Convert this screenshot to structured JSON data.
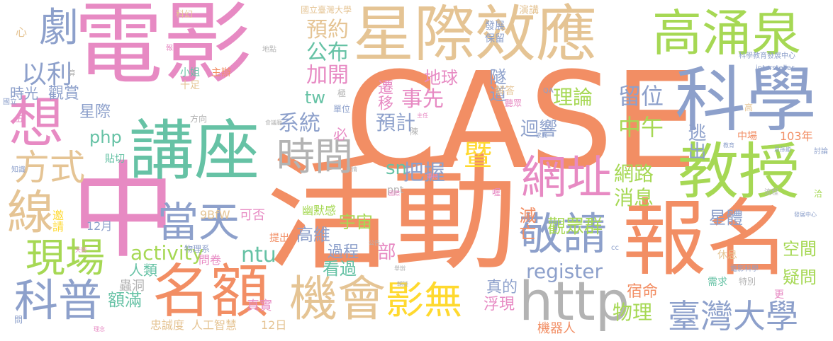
{
  "palette": {
    "orange": "#f28e64",
    "pink": "#e78ac3",
    "green": "#a6d854",
    "tan": "#e5c494",
    "gray": "#b3b3b3",
    "blue": "#8da0cb",
    "teal": "#66c2a5",
    "yellow": "#ffd92f"
  },
  "words": [
    {
      "text": "CASE",
      "color": "#f28e64"
    },
    {
      "text": "電影",
      "color": "#e78ac3"
    },
    {
      "text": "星際效應",
      "color": "#e5c494"
    },
    {
      "text": "活動",
      "color": "#f28e64"
    },
    {
      "text": "中",
      "color": "#e78ac3"
    },
    {
      "text": "報名",
      "color": "#f28e64"
    },
    {
      "text": "講座",
      "color": "#66c2a5"
    },
    {
      "text": "科學",
      "color": "#8da0cb"
    },
    {
      "text": "教授",
      "color": "#a6d854"
    },
    {
      "text": "高涌泉",
      "color": "#a6d854"
    },
    {
      "text": "http",
      "color": "#b3b3b3"
    },
    {
      "text": "名額",
      "color": "#f28e64"
    },
    {
      "text": "機會",
      "color": "#e5c494"
    },
    {
      "text": "網址",
      "color": "#e78ac3"
    },
    {
      "text": "敬請",
      "color": "#8da0cb"
    },
    {
      "text": "當天",
      "color": "#8da0cb"
    },
    {
      "text": "時間",
      "color": "#b3b3b3"
    },
    {
      "text": "想",
      "color": "#e78ac3"
    },
    {
      "text": "劇",
      "color": "#8da0cb"
    },
    {
      "text": "方式",
      "color": "#e5c494"
    },
    {
      "text": "線",
      "color": "#e5c494"
    },
    {
      "text": "現場",
      "color": "#a6d854"
    },
    {
      "text": "科普",
      "color": "#8da0cb"
    },
    {
      "text": "影無",
      "color": "#ffd92f"
    },
    {
      "text": "臺灣大學",
      "color": "#8da0cb"
    },
    {
      "text": "以利",
      "color": "#8da0cb"
    },
    {
      "text": "預約",
      "color": "#e5c494"
    },
    {
      "text": "公布",
      "color": "#66c2a5"
    },
    {
      "text": "加開",
      "color": "#e78ac3"
    },
    {
      "text": "事先",
      "color": "#e78ac3"
    },
    {
      "text": "預計",
      "color": "#8da0cb"
    },
    {
      "text": "系統",
      "color": "#8da0cb"
    },
    {
      "text": "把握",
      "color": "#8da0cb"
    },
    {
      "text": "理論",
      "color": "#a6d854"
    },
    {
      "text": "留位",
      "color": "#8da0cb"
    },
    {
      "text": "中午",
      "color": "#a6d854"
    },
    {
      "text": "迴響",
      "color": "#8da0cb"
    },
    {
      "text": "逃出",
      "color": "#8da0cb"
    },
    {
      "text": "遷移",
      "color": "#e78ac3"
    },
    {
      "text": "地球",
      "color": "#e78ac3"
    },
    {
      "text": "隧道",
      "color": "#8da0cb"
    },
    {
      "text": "網路",
      "color": "#a6d854"
    },
    {
      "text": "消息",
      "color": "#a6d854"
    },
    {
      "text": "觀眾群",
      "color": "#a6d854"
    },
    {
      "text": "滅亡",
      "color": "#f28e64"
    },
    {
      "text": "宇宙",
      "color": "#a6d854"
    },
    {
      "text": "過程",
      "color": "#8da0cb"
    },
    {
      "text": "高維",
      "color": "#8da0cb"
    },
    {
      "text": "星體",
      "color": "#8da0cb"
    },
    {
      "text": "空間",
      "color": "#a6d854"
    },
    {
      "text": "疑問",
      "color": "#a6d854"
    },
    {
      "text": "物理",
      "color": "#a6d854"
    },
    {
      "text": "宿命",
      "color": "#f28e64"
    },
    {
      "text": "register",
      "color": "#8da0cb"
    },
    {
      "text": "activity",
      "color": "#a6d854"
    },
    {
      "text": "ntu",
      "color": "#66c2a5"
    },
    {
      "text": "看過",
      "color": "#66c2a5"
    },
    {
      "text": "部",
      "color": "#e78ac3"
    },
    {
      "text": "tw",
      "color": "#66c2a5"
    },
    {
      "text": "php",
      "color": "#66c2a5"
    },
    {
      "text": "sn",
      "color": "#66c2a5"
    },
    {
      "text": "暨",
      "color": "#ffd92f"
    },
    {
      "text": "必",
      "color": "#e78ac3"
    },
    {
      "text": "時光",
      "color": "#8da0cb"
    },
    {
      "text": "觀賞",
      "color": "#8da0cb"
    },
    {
      "text": "星際",
      "color": "#8da0cb"
    },
    {
      "text": "額滿",
      "color": "#66c2a5"
    },
    {
      "text": "人類",
      "color": "#66c2a5"
    },
    {
      "text": "蟲洞",
      "color": "#b3b3b3"
    },
    {
      "text": "真實",
      "color": "#e78ac3"
    },
    {
      "text": "真的",
      "color": "#8da0cb"
    },
    {
      "text": "浮現",
      "color": "#e78ac3"
    },
    {
      "text": "機器人",
      "color": "#f28e64"
    },
    {
      "text": "忠誠度",
      "color": "#e5c494"
    },
    {
      "text": "人工智慧",
      "color": "#e5c494"
    },
    {
      "text": "12日",
      "color": "#e5c494"
    },
    {
      "text": "103年",
      "color": "#f28e64"
    },
    {
      "text": "幽默感",
      "color": "#a6d854"
    },
    {
      "text": "可否",
      "color": "#e78ac3"
    },
    {
      "text": "9BfW",
      "color": "#e5c494"
    },
    {
      "text": "12月",
      "color": "#8da0cb"
    },
    {
      "text": "邀請",
      "color": "#ffd92f"
    },
    {
      "text": "提出",
      "color": "#f28e64"
    },
    {
      "text": "問卷",
      "color": "#e78ac3"
    },
    {
      "text": "物理系",
      "color": "#8da0cb"
    },
    {
      "text": "ppt",
      "color": "#b3b3b3"
    },
    {
      "text": "小姐",
      "color": "#66c2a5"
    },
    {
      "text": "十足",
      "color": "#e5c494"
    },
    {
      "text": "主辦",
      "color": "#f28e64"
    },
    {
      "text": "貼切",
      "color": "#66c2a5"
    },
    {
      "text": "方向",
      "color": "#b3b3b3"
    },
    {
      "text": "單位",
      "color": "#8da0cb"
    },
    {
      "text": "解答",
      "color": "#e5c494"
    },
    {
      "text": "聽眾",
      "color": "#e78ac3"
    },
    {
      "text": "中場",
      "color": "#f28e64"
    },
    {
      "text": "休息",
      "color": "#e5c494"
    },
    {
      "text": "需求",
      "color": "#66c2a5"
    },
    {
      "text": "特別",
      "color": "#b3b3b3"
    },
    {
      "text": "更",
      "color": "#e78ac3"
    },
    {
      "text": "電影科學",
      "color": "#8da0cb"
    },
    {
      "text": "演講",
      "color": "#e5c494"
    },
    {
      "text": "發展",
      "color": "#8da0cb"
    },
    {
      "text": "保留",
      "color": "#8da0cb"
    },
    {
      "text": "科學教育發展中心",
      "color": "#8da0cb"
    },
    {
      "text": "interstellar",
      "color": "#8da0cb"
    },
    {
      "text": "國立臺灣大學",
      "color": "#e5c494"
    },
    {
      "text": "科幻",
      "color": "#e5c494"
    },
    {
      "text": "心",
      "color": "#e5c494"
    },
    {
      "text": "報到",
      "color": "#e78ac3"
    },
    {
      "text": "地點",
      "color": "#b3b3b3"
    },
    {
      "text": "算",
      "color": "#b3b3b3"
    },
    {
      "text": "五",
      "color": "#e78ac3"
    },
    {
      "text": "國立",
      "color": "#8da0cb"
    },
    {
      "text": "知識",
      "color": "#8da0cb"
    },
    {
      "text": "教育",
      "color": "#8da0cb"
    },
    {
      "text": "思孫能",
      "color": "#8da0cb"
    },
    {
      "text": "討論",
      "color": "#8da0cb"
    },
    {
      "text": "流程",
      "color": "#b3b3b3"
    },
    {
      "text": "洽",
      "color": "#a6d854"
    },
    {
      "text": "發展中心",
      "color": "#8da0cb"
    },
    {
      "text": "QA",
      "color": "#8da0cb"
    },
    {
      "text": "高",
      "color": "#e5c494"
    },
    {
      "text": "求異",
      "color": "#8da0cb"
    },
    {
      "text": "主任",
      "color": "#e78ac3"
    },
    {
      "text": "陳",
      "color": "#b3b3b3"
    },
    {
      "text": "會議廳",
      "color": "#b3b3b3"
    },
    {
      "text": "極",
      "color": "#b3b3b3"
    },
    {
      "text": "劇情",
      "color": "#b3b3b3"
    },
    {
      "text": "秉持",
      "color": "#e78ac3"
    },
    {
      "text": "國際",
      "color": "#e78ac3"
    },
    {
      "text": "喔",
      "color": "#e78ac3"
    },
    {
      "text": "cc",
      "color": "#8da0cb"
    },
    {
      "text": "公告",
      "color": "#b3b3b3"
    },
    {
      "text": "舉辦",
      "color": "#b3b3b3"
    },
    {
      "text": "輔談",
      "color": "#b3b3b3"
    },
    {
      "text": "問",
      "color": "#8da0cb"
    },
    {
      "text": "天開",
      "color": "#e78ac3"
    },
    {
      "text": "理念",
      "color": "#e78ac3"
    }
  ]
}
